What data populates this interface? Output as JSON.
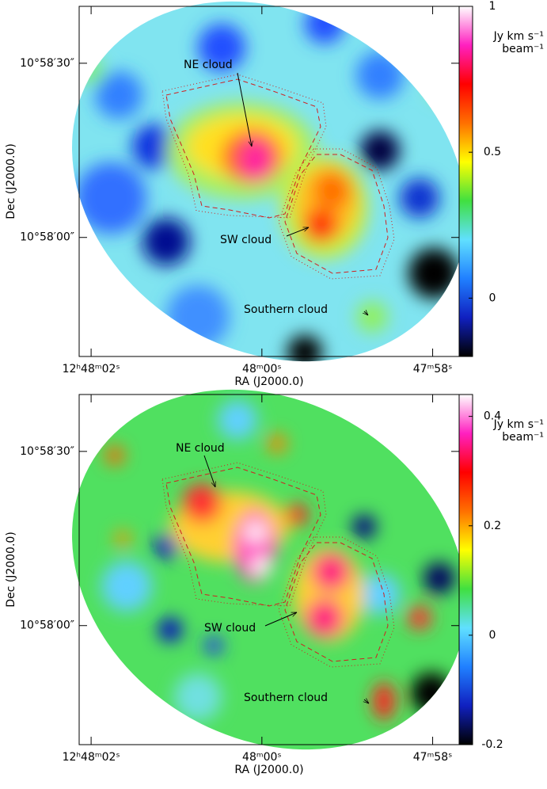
{
  "chart_data": [
    {
      "type": "image",
      "xlabel": "RA (J2000.0)",
      "ylabel": "Dec (J2000.0)",
      "xlim": [
        62.14,
        57.69
      ],
      "xticks": [
        {
          "value": 62,
          "label": "12ʰ48ᵐ02ˢ"
        },
        {
          "value": 60,
          "label": "48ᵐ00ˢ"
        },
        {
          "value": 58,
          "label": "47ᵐ58ˢ"
        }
      ],
      "ylim": [
        -20.5,
        39.8
      ],
      "yticks": [
        {
          "value": 30,
          "label": "10°58′30″"
        },
        {
          "value": 0,
          "label": "10°58′00″"
        }
      ],
      "colorbar": {
        "units": [
          "Jy km s⁻¹",
          "beam⁻¹"
        ],
        "lim": [
          -0.2,
          1
        ],
        "ticks": [
          0,
          0.5,
          1
        ],
        "colormap": [
          "#000000",
          "#1020c0",
          "#2080ff",
          "#60e0ff",
          "#40e040",
          "#ffff00",
          "#ff7000",
          "#ff0000",
          "#ff20c0",
          "#ffffff"
        ]
      },
      "annotations": [
        "NE cloud",
        "SW cloud",
        "Southern cloud"
      ]
    },
    {
      "type": "image",
      "xlabel": "RA (J2000.0)",
      "ylabel": "Dec (J2000.0)",
      "xlim": [
        62.14,
        57.69
      ],
      "xticks": [
        {
          "value": 62,
          "label": "12ʰ48ᵐ02ˢ"
        },
        {
          "value": 60,
          "label": "48ᵐ00ˢ"
        },
        {
          "value": 58,
          "label": "47ᵐ58ˢ"
        }
      ],
      "ylim": [
        -20.5,
        39.8
      ],
      "yticks": [
        {
          "value": 30,
          "label": "10°58′30″"
        },
        {
          "value": 0,
          "label": "10°58′00″"
        }
      ],
      "colorbar": {
        "units": [
          "Jy km s⁻¹",
          "beam⁻¹"
        ],
        "lim": [
          -0.2,
          0.44
        ],
        "ticks": [
          0.4,
          0.2,
          0,
          -0.2
        ],
        "colormap": [
          "#000000",
          "#1020c0",
          "#2080ff",
          "#60e0ff",
          "#40e040",
          "#ffff00",
          "#ff7000",
          "#ff0000",
          "#ff20c0",
          "#ffffff"
        ]
      },
      "annotations": [
        "NE cloud",
        "SW cloud",
        "Southern cloud"
      ]
    }
  ]
}
